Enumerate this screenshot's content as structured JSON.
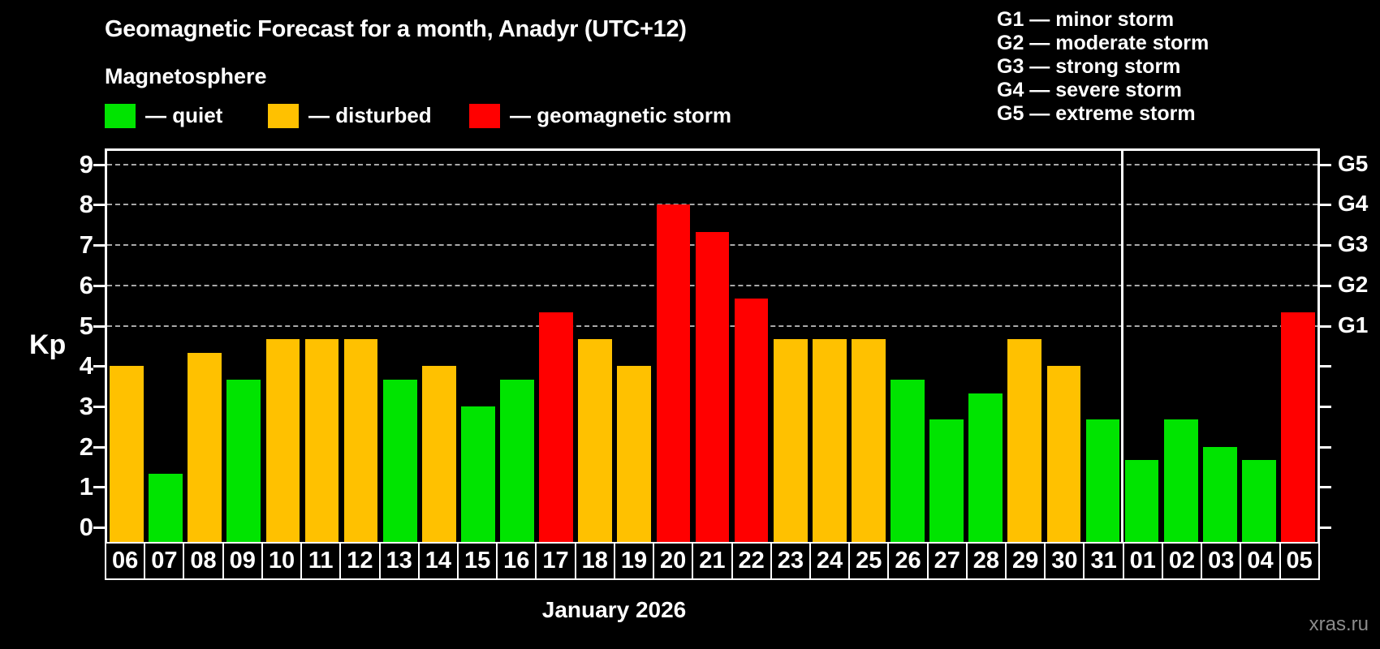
{
  "header": {
    "title": "Geomagnetic Forecast for a month, Anadyr (UTC+12)",
    "subtitle": "Magnetosphere"
  },
  "legend": {
    "items": [
      {
        "label": "— quiet",
        "status": "quiet",
        "color": "#00e400"
      },
      {
        "label": "— disturbed",
        "status": "disturbed",
        "color": "#ffc100"
      },
      {
        "label": "— geomagnetic storm",
        "status": "storm",
        "color": "#ff0000"
      }
    ]
  },
  "storm_scale_legend": {
    "items": [
      "G1 — minor storm",
      "G2 — moderate storm",
      "G3 — strong storm",
      "G4 — severe storm",
      "G5 — extreme storm"
    ]
  },
  "watermark": "xras.ru",
  "chart_data": {
    "type": "bar",
    "title": "Geomagnetic Forecast for a month, Anadyr (UTC+12)",
    "subtitle": "Magnetosphere",
    "xlabel": "January 2026",
    "ylabel": "Kp",
    "ylim": [
      0,
      9.4
    ],
    "grid": "horizontal dashed lines at Kp 5,6,7,8,9",
    "legend_position": "top-left",
    "categories": [
      "06",
      "07",
      "08",
      "09",
      "10",
      "11",
      "12",
      "13",
      "14",
      "15",
      "16",
      "17",
      "18",
      "19",
      "20",
      "21",
      "22",
      "23",
      "24",
      "25",
      "26",
      "27",
      "28",
      "29",
      "30",
      "31",
      "01",
      "02",
      "03",
      "04",
      "05"
    ],
    "values": [
      4,
      1.33,
      4.33,
      3.67,
      4.67,
      4.67,
      4.67,
      3.67,
      4,
      3,
      3.67,
      5.33,
      4.67,
      4,
      8,
      7.33,
      5.67,
      4.67,
      4.67,
      4.67,
      3.67,
      2.67,
      3.33,
      4.67,
      4,
      2.67,
      1.67,
      2.67,
      2,
      1.67,
      5.33
    ],
    "statuses": [
      "disturbed",
      "quiet",
      "disturbed",
      "quiet",
      "disturbed",
      "disturbed",
      "disturbed",
      "quiet",
      "disturbed",
      "quiet",
      "quiet",
      "storm",
      "disturbed",
      "disturbed",
      "storm",
      "storm",
      "storm",
      "disturbed",
      "disturbed",
      "disturbed",
      "quiet",
      "quiet",
      "quiet",
      "disturbed",
      "disturbed",
      "quiet",
      "quiet",
      "quiet",
      "quiet",
      "quiet",
      "storm"
    ],
    "status_colors": {
      "quiet": "#00e400",
      "disturbed": "#ffc100",
      "storm": "#ff0000"
    },
    "left_ticks": [
      0,
      1,
      2,
      3,
      4,
      5,
      6,
      7,
      8,
      9
    ],
    "right_ticks": [
      0,
      1,
      2,
      3,
      4,
      5,
      6,
      7,
      8,
      9
    ],
    "right_axis_labels": [
      {
        "kp": 5,
        "label": "G1"
      },
      {
        "kp": 6,
        "label": "G2"
      },
      {
        "kp": 7,
        "label": "G3"
      },
      {
        "kp": 8,
        "label": "G4"
      },
      {
        "kp": 9,
        "label": "G5"
      }
    ],
    "gridlines_at": [
      5,
      6,
      7,
      8,
      9
    ],
    "month_separator_after_category": "31"
  }
}
